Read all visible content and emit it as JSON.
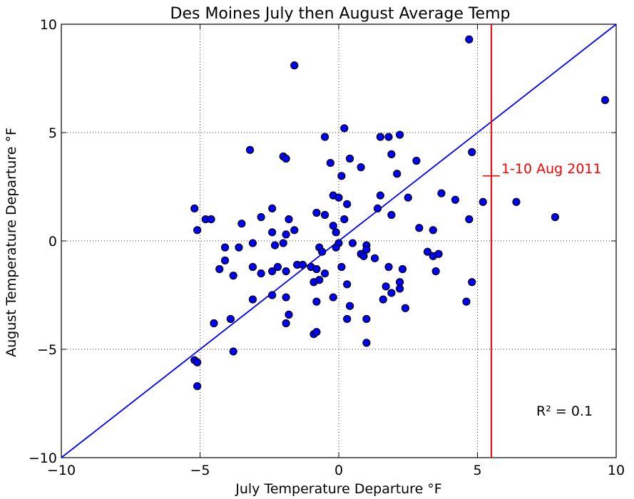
{
  "chart_data": {
    "type": "scatter",
    "title": "Des Moines July then August Average Temp",
    "xlabel": "July Temperature Departure °F",
    "ylabel": "August Temperature Departure °F",
    "xlim": [
      -10,
      10
    ],
    "ylim": [
      -10,
      10
    ],
    "xticks": [
      -10,
      -5,
      0,
      5,
      10
    ],
    "yticks": [
      -10,
      -5,
      0,
      5,
      10
    ],
    "xtick_labels": [
      "−10",
      "−5",
      "0",
      "5",
      "10"
    ],
    "ytick_labels": [
      "−10",
      "−5",
      "0",
      "5",
      "10"
    ],
    "grid": true,
    "reference_line": {
      "type": "y=x",
      "color": "#0000ff"
    },
    "vertical_line": {
      "x": 5.5,
      "color": "#ff0000"
    },
    "annotation": {
      "text": "1-10 Aug 2011",
      "x": 5.5,
      "y": 3.0,
      "color": "#ff0000"
    },
    "r_squared_label": "R² = 0.1",
    "points": [
      {
        "x": 4.7,
        "y": 9.3
      },
      {
        "x": -1.6,
        "y": 8.1
      },
      {
        "x": 9.6,
        "y": 6.5
      },
      {
        "x": -3.2,
        "y": 4.2
      },
      {
        "x": -2.0,
        "y": 3.9
      },
      {
        "x": -1.9,
        "y": 3.8
      },
      {
        "x": -0.5,
        "y": 4.8
      },
      {
        "x": 0.2,
        "y": 5.2
      },
      {
        "x": 1.5,
        "y": 4.8
      },
      {
        "x": 1.8,
        "y": 4.8
      },
      {
        "x": 2.2,
        "y": 4.9
      },
      {
        "x": 4.8,
        "y": 4.1
      },
      {
        "x": -0.3,
        "y": 3.6
      },
      {
        "x": 0.1,
        "y": 3.0
      },
      {
        "x": 0.4,
        "y": 3.8
      },
      {
        "x": 0.8,
        "y": 3.4
      },
      {
        "x": 1.9,
        "y": 4.0
      },
      {
        "x": 2.8,
        "y": 3.7
      },
      {
        "x": 2.1,
        "y": 3.1
      },
      {
        "x": -0.2,
        "y": 2.1
      },
      {
        "x": 0.0,
        "y": 2.0
      },
      {
        "x": 0.3,
        "y": 1.7
      },
      {
        "x": 1.5,
        "y": 2.1
      },
      {
        "x": 2.5,
        "y": 2.0
      },
      {
        "x": 3.7,
        "y": 2.2
      },
      {
        "x": 4.2,
        "y": 1.9
      },
      {
        "x": 5.2,
        "y": 1.8
      },
      {
        "x": 6.4,
        "y": 1.8
      },
      {
        "x": 7.8,
        "y": 1.1
      },
      {
        "x": -5.2,
        "y": 1.5
      },
      {
        "x": -4.8,
        "y": 1.0
      },
      {
        "x": -2.4,
        "y": 1.5
      },
      {
        "x": -1.8,
        "y": 1.0
      },
      {
        "x": -0.8,
        "y": 1.3
      },
      {
        "x": -0.5,
        "y": 1.2
      },
      {
        "x": 0.2,
        "y": 1.0
      },
      {
        "x": 1.4,
        "y": 1.5
      },
      {
        "x": 1.9,
        "y": 1.2
      },
      {
        "x": 2.9,
        "y": 0.6
      },
      {
        "x": 4.7,
        "y": 1.0
      },
      {
        "x": -5.1,
        "y": 0.5
      },
      {
        "x": -4.1,
        "y": -0.3
      },
      {
        "x": -3.5,
        "y": 0.8
      },
      {
        "x": -2.8,
        "y": 1.1
      },
      {
        "x": -2.4,
        "y": 0.4
      },
      {
        "x": -1.6,
        "y": 0.5
      },
      {
        "x": -1.9,
        "y": 0.3
      },
      {
        "x": -1.5,
        "y": -1.1
      },
      {
        "x": -0.2,
        "y": 0.7
      },
      {
        "x": -0.1,
        "y": 0.4
      },
      {
        "x": 0.0,
        "y": -0.1
      },
      {
        "x": 0.5,
        "y": -0.1
      },
      {
        "x": 1.0,
        "y": -0.2
      },
      {
        "x": 1.0,
        "y": -0.4
      },
      {
        "x": 3.4,
        "y": 0.5
      },
      {
        "x": -3.6,
        "y": -0.3
      },
      {
        "x": -3.1,
        "y": -0.1
      },
      {
        "x": -2.3,
        "y": -0.2
      },
      {
        "x": -2.0,
        "y": -0.1
      },
      {
        "x": -0.7,
        "y": -0.3
      },
      {
        "x": -0.6,
        "y": -0.5
      },
      {
        "x": -0.1,
        "y": -0.3
      },
      {
        "x": 0.8,
        "y": -0.6
      },
      {
        "x": 0.9,
        "y": -0.7
      },
      {
        "x": 1.3,
        "y": -0.8
      },
      {
        "x": 3.2,
        "y": -0.5
      },
      {
        "x": 3.4,
        "y": -0.7
      },
      {
        "x": 3.6,
        "y": -0.6
      },
      {
        "x": -4.3,
        "y": -1.3
      },
      {
        "x": -4.1,
        "y": -0.9
      },
      {
        "x": -3.1,
        "y": -1.2
      },
      {
        "x": -2.8,
        "y": -1.5
      },
      {
        "x": -2.4,
        "y": -1.4
      },
      {
        "x": -2.2,
        "y": -1.2
      },
      {
        "x": -1.9,
        "y": -1.4
      },
      {
        "x": -1.3,
        "y": -1.1
      },
      {
        "x": -1.0,
        "y": -1.2
      },
      {
        "x": -0.9,
        "y": -1.9
      },
      {
        "x": -0.8,
        "y": -1.3
      },
      {
        "x": -0.5,
        "y": -1.5
      },
      {
        "x": 0.1,
        "y": -1.2
      },
      {
        "x": 1.8,
        "y": -1.2
      },
      {
        "x": 2.3,
        "y": -1.3
      },
      {
        "x": 3.5,
        "y": -1.4
      },
      {
        "x": -3.8,
        "y": -1.6
      },
      {
        "x": -3.1,
        "y": -2.7
      },
      {
        "x": -2.4,
        "y": -2.5
      },
      {
        "x": -1.9,
        "y": -2.6
      },
      {
        "x": -0.8,
        "y": -2.8
      },
      {
        "x": -0.2,
        "y": -2.6
      },
      {
        "x": 0.3,
        "y": -2.0
      },
      {
        "x": 0.4,
        "y": -3.0
      },
      {
        "x": 0.3,
        "y": -3.6
      },
      {
        "x": 1.0,
        "y": -3.6
      },
      {
        "x": 1.7,
        "y": -2.1
      },
      {
        "x": 1.9,
        "y": -2.4
      },
      {
        "x": 2.2,
        "y": -2.2
      },
      {
        "x": 2.2,
        "y": -1.9
      },
      {
        "x": 2.4,
        "y": -3.1
      },
      {
        "x": 1.6,
        "y": -2.7
      },
      {
        "x": -0.7,
        "y": -1.8
      },
      {
        "x": -1.8,
        "y": -3.4
      },
      {
        "x": -1.9,
        "y": -3.8
      },
      {
        "x": -3.9,
        "y": -3.6
      },
      {
        "x": -4.5,
        "y": -3.8
      },
      {
        "x": -3.8,
        "y": -5.1
      },
      {
        "x": -0.9,
        "y": -4.3
      },
      {
        "x": -0.8,
        "y": -4.2
      },
      {
        "x": 1.0,
        "y": -4.7
      },
      {
        "x": 4.6,
        "y": -2.8
      },
      {
        "x": 4.8,
        "y": -1.9
      },
      {
        "x": -5.2,
        "y": -5.5
      },
      {
        "x": -5.1,
        "y": -5.6
      },
      {
        "x": -5.1,
        "y": -6.7
      },
      {
        "x": -4.6,
        "y": 1.0
      }
    ]
  }
}
